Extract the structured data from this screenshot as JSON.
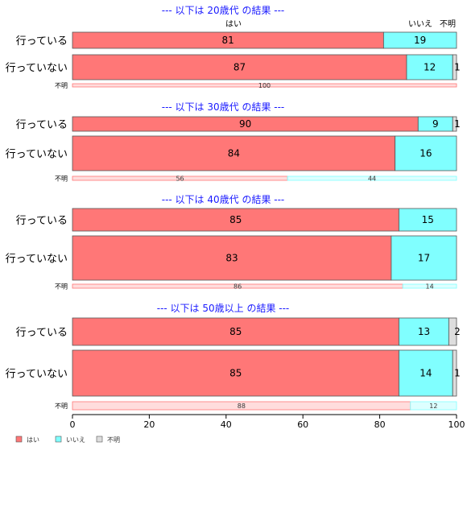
{
  "chart_data": {
    "type": "bar",
    "orientation": "horizontal",
    "stacked": true,
    "percent": true,
    "xlim": [
      0,
      100
    ],
    "xticks": [
      0,
      20,
      40,
      60,
      80,
      100
    ],
    "category_headers": [
      "はい",
      "いいえ",
      "不明"
    ],
    "series": [
      {
        "name": "はい",
        "color": "#ff7777"
      },
      {
        "name": "いいえ",
        "color": "#80ffff"
      },
      {
        "name": "不明",
        "color": "#dddddd"
      }
    ],
    "groups": [
      {
        "title": "--- 以下は 20歳代 の結果 ---",
        "rows": [
          {
            "label": "行っている",
            "values": [
              81,
              19,
              0
            ],
            "labels": [
              "81",
              "19",
              ""
            ]
          },
          {
            "label": "行っていない",
            "values": [
              87,
              12,
              1
            ],
            "labels": [
              "87",
              "12",
              "1"
            ]
          },
          {
            "label": "不明",
            "small": true,
            "values": [
              100,
              0,
              0
            ],
            "labels": [
              "100",
              "",
              ""
            ]
          }
        ]
      },
      {
        "title": "--- 以下は 30歳代 の結果 ---",
        "rows": [
          {
            "label": "行っている",
            "values": [
              90,
              9,
              1
            ],
            "labels": [
              "90",
              "9",
              "1"
            ]
          },
          {
            "label": "行っていない",
            "values": [
              84,
              16,
              0
            ],
            "labels": [
              "84",
              "16",
              ""
            ]
          },
          {
            "label": "不明",
            "small": true,
            "values": [
              56,
              44,
              0
            ],
            "labels": [
              "56",
              "44",
              ""
            ]
          }
        ]
      },
      {
        "title": "--- 以下は 40歳代 の結果 ---",
        "rows": [
          {
            "label": "行っている",
            "values": [
              85,
              15,
              0
            ],
            "labels": [
              "85",
              "15",
              ""
            ]
          },
          {
            "label": "行っていない",
            "values": [
              83,
              17,
              0
            ],
            "labels": [
              "83",
              "17",
              ""
            ]
          },
          {
            "label": "不明",
            "small": true,
            "values": [
              86,
              14,
              0
            ],
            "labels": [
              "86",
              "14",
              ""
            ]
          }
        ]
      },
      {
        "title": "--- 以下は 50歳以上 の結果 ---",
        "rows": [
          {
            "label": "行っている",
            "values": [
              85,
              13,
              2
            ],
            "labels": [
              "85",
              "13",
              "2"
            ]
          },
          {
            "label": "行っていない",
            "values": [
              85,
              14,
              1
            ],
            "labels": [
              "85",
              "14",
              "1"
            ]
          },
          {
            "label": "不明",
            "small": true,
            "values": [
              88,
              12,
              0
            ],
            "labels": [
              "88",
              "12",
              ""
            ]
          }
        ]
      }
    ],
    "legend": {
      "position": "bottom-left",
      "items": [
        "はい",
        "いいえ",
        "不明"
      ]
    }
  }
}
